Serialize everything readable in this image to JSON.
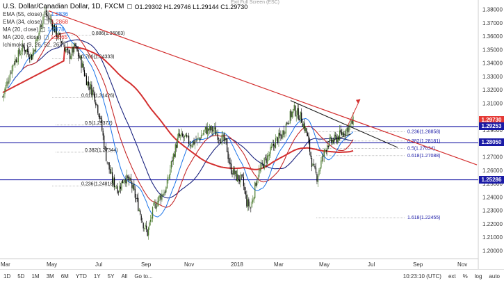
{
  "fullscreen_hint": "Exit Full Screen (ESC)",
  "symbol": {
    "name": "U.S. Dollar/Canadian Dollar, 1D, FXCM",
    "open": "O1.29302",
    "high": "H1.29746",
    "low": "L1.29144",
    "close": "C1.29730"
  },
  "indicators": [
    {
      "label": "EMA (55, close)",
      "value": "1.2836",
      "color": "#1a73e8"
    },
    {
      "label": "EMA (34, close)",
      "value": "1.2868",
      "color": "#e53935"
    },
    {
      "label": "MA (20, close)",
      "value": "1.2878",
      "color": "#1a73e8"
    },
    {
      "label": "MA (200, close)",
      "value": "1.2665",
      "color": "#e53935"
    },
    {
      "label": "Ichimoku (9, 26, 52, 26)",
      "value": "",
      "color": "#9e9e9e"
    }
  ],
  "y_axis": {
    "ticks": [
      "1.38000",
      "1.37000",
      "1.36000",
      "1.35000",
      "1.34000",
      "1.33000",
      "1.32000",
      "1.31000",
      "1.29000",
      "1.28000",
      "1.27000",
      "1.26000",
      "1.25000",
      "1.24000",
      "1.23000",
      "1.22000",
      "1.21000",
      "1.20000"
    ],
    "badges": [
      {
        "label": "1.29730",
        "value": 1.2973,
        "color": "#e53935"
      },
      {
        "label": "1.29253",
        "value": 1.29253,
        "color": "#1a1aa6"
      },
      {
        "label": "1.28050",
        "value": 1.2805,
        "color": "#1a1aa6"
      },
      {
        "label": "1.25286",
        "value": 1.25286,
        "color": "#1a1aa6"
      }
    ]
  },
  "x_axis": {
    "ticks": [
      "Mar",
      "May",
      "Jul",
      "Sep",
      "Nov",
      "2018",
      "Mar",
      "May",
      "Jul",
      "Sep",
      "Nov"
    ]
  },
  "fib_labels": [
    "0.886(1.36063)",
    "0.786(1.34333)",
    "0.618(1.31426)",
    "0.5(1.29372)",
    "0.382(1.27344)",
    "0.236(1.24818)",
    "0.236(1.28858)",
    "0.382(1.28181)",
    "0.5(1.27634)",
    "0.618(1.27088)",
    "1.618(1.22455)"
  ],
  "bottom_bar": {
    "timeframes": [
      "1D",
      "5D",
      "1M",
      "3M",
      "6M",
      "YTD",
      "1Y",
      "5Y",
      "All"
    ],
    "goto": "Go to...",
    "time": "10:23:10 (UTC)",
    "ext": "ext",
    "pct": "%",
    "log": "log",
    "auto": "auto"
  },
  "colors": {
    "resistance_line": "#d32f2f",
    "support_lines": "#1a1aa6",
    "candle_up": "#4a7a2c",
    "candle_down": "#000000",
    "ma200": "#d32f2f",
    "ema55": "#1a237e",
    "ema34": "#c62828",
    "ma20": "#1a73e8"
  }
}
